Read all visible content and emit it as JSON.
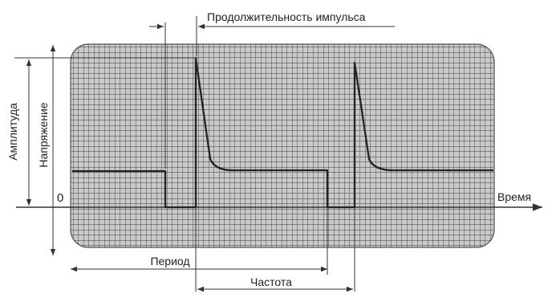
{
  "diagram": {
    "labels": {
      "pulse_duration": "Продолжительность импульса",
      "amplitude": "Амплитуда",
      "voltage": "Напряжение",
      "zero": "0",
      "time": "Время",
      "period": "Период",
      "frequency": "Частота"
    }
  }
}
